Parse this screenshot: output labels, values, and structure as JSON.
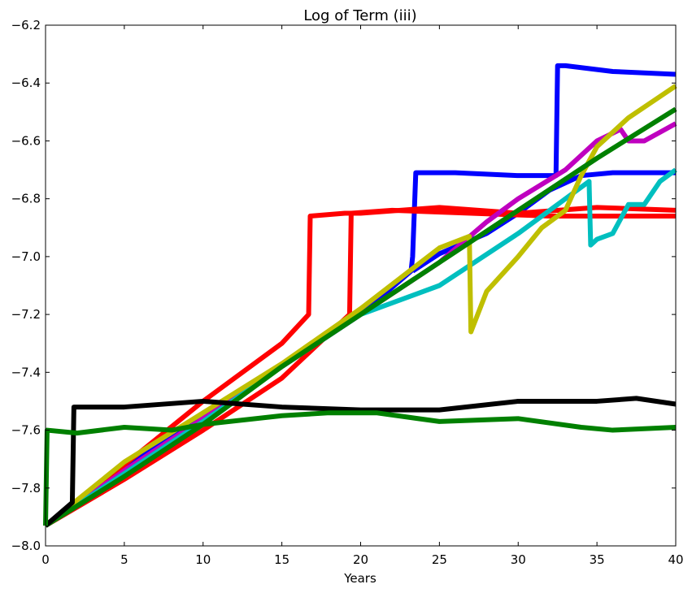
{
  "chart_data": {
    "type": "line",
    "title": "Log of Term (iii)",
    "xlabel": "Years",
    "ylabel": "",
    "xlim": [
      0,
      40
    ],
    "ylim": [
      -8.0,
      -6.2
    ],
    "xticks": [
      "0",
      "5",
      "10",
      "15",
      "20",
      "25",
      "30",
      "35",
      "40"
    ],
    "yticks": [
      "−8.0",
      "−7.8",
      "−7.6",
      "−7.4",
      "−7.2",
      "−7.0",
      "−6.8",
      "−6.6",
      "−6.4",
      "−6.2"
    ],
    "grid": false,
    "series": [
      {
        "color": "#0000ff",
        "x": [
          0,
          5,
          10,
          15,
          20,
          23.2,
          23.3,
          23.5,
          26,
          30,
          32.4,
          32.5,
          33,
          36,
          40
        ],
        "y": [
          -7.93,
          -7.72,
          -7.56,
          -7.38,
          -7.2,
          -7.05,
          -7.0,
          -6.71,
          -6.71,
          -6.72,
          -6.72,
          -6.34,
          -6.34,
          -6.36,
          -6.37
        ]
      },
      {
        "color": "#0000ff",
        "x": [
          23.3,
          25,
          28,
          30,
          32,
          34,
          36,
          40
        ],
        "y": [
          -7.05,
          -6.99,
          -6.92,
          -6.85,
          -6.77,
          -6.72,
          -6.71,
          -6.71
        ]
      },
      {
        "color": "#ff0000",
        "x": [
          0,
          5,
          10,
          15,
          16.7,
          16.8,
          19,
          20,
          25,
          30,
          35,
          40
        ],
        "y": [
          -7.93,
          -7.72,
          -7.5,
          -7.3,
          -7.2,
          -6.86,
          -6.85,
          -6.85,
          -6.83,
          -6.85,
          -6.83,
          -6.84
        ]
      },
      {
        "color": "#ff0000",
        "x": [
          0,
          5,
          10,
          15,
          19.3,
          19.4,
          22,
          27,
          32,
          36,
          40
        ],
        "y": [
          -7.93,
          -7.77,
          -7.6,
          -7.42,
          -7.2,
          -6.85,
          -6.84,
          -6.85,
          -6.86,
          -6.86,
          -6.86
        ]
      },
      {
        "color": "#bf00bf",
        "x": [
          0,
          5,
          10,
          15,
          20,
          25,
          28,
          30,
          33,
          35,
          36.5,
          37,
          38,
          40
        ],
        "y": [
          -7.93,
          -7.74,
          -7.56,
          -7.38,
          -7.2,
          -7.02,
          -6.88,
          -6.8,
          -6.7,
          -6.6,
          -6.56,
          -6.6,
          -6.6,
          -6.54
        ]
      },
      {
        "color": "#00bfbf",
        "x": [
          0,
          5,
          10,
          15,
          20,
          25,
          30,
          34.5,
          34.6,
          35,
          36,
          37,
          38,
          39,
          40
        ],
        "y": [
          -7.93,
          -7.75,
          -7.57,
          -7.38,
          -7.2,
          -7.1,
          -6.92,
          -6.74,
          -6.96,
          -6.94,
          -6.92,
          -6.82,
          -6.82,
          -6.74,
          -6.7
        ]
      },
      {
        "color": "#bfbf00",
        "x": [
          0,
          5,
          10,
          15,
          20,
          25,
          26.9,
          27,
          28,
          30,
          31.5,
          33,
          34,
          35,
          37,
          40
        ],
        "y": [
          -7.93,
          -7.71,
          -7.54,
          -7.37,
          -7.18,
          -6.97,
          -6.93,
          -7.26,
          -7.12,
          -7.0,
          -6.9,
          -6.84,
          -6.72,
          -6.62,
          -6.52,
          -6.41
        ]
      },
      {
        "color": "#008000",
        "x": [
          0,
          5,
          10,
          15,
          20,
          25,
          30,
          35,
          40
        ],
        "y": [
          -7.93,
          -7.76,
          -7.58,
          -7.38,
          -7.2,
          -7.02,
          -6.84,
          -6.66,
          -6.49
        ]
      },
      {
        "color": "#000000",
        "x": [
          0,
          1.7,
          1.8,
          5,
          10,
          15,
          20,
          25,
          30,
          35,
          37.5,
          40
        ],
        "y": [
          -7.93,
          -7.85,
          -7.52,
          -7.52,
          -7.5,
          -7.52,
          -7.53,
          -7.53,
          -7.5,
          -7.5,
          -7.49,
          -7.51
        ]
      },
      {
        "color": "#008000",
        "x": [
          0,
          0.1,
          2,
          5,
          8,
          10,
          15,
          18,
          21,
          25,
          30,
          34,
          36,
          40
        ],
        "y": [
          -7.93,
          -7.6,
          -7.61,
          -7.59,
          -7.6,
          -7.58,
          -7.55,
          -7.54,
          -7.54,
          -7.57,
          -7.56,
          -7.59,
          -7.6,
          -7.59
        ]
      }
    ]
  }
}
